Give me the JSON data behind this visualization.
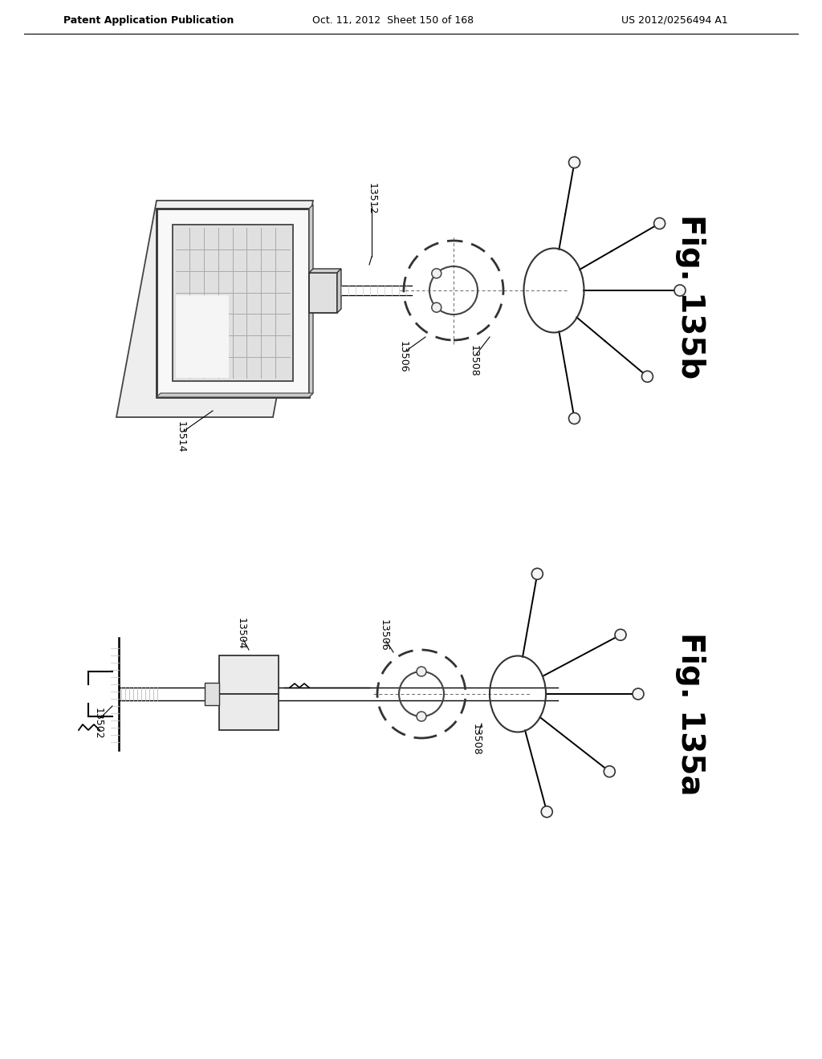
{
  "header_left": "Patent Application Publication",
  "header_center": "Oct. 11, 2012  Sheet 150 of 168",
  "header_right": "US 2012/0256494 A1",
  "fig_b_label": "Fig. 135b",
  "fig_a_label": "Fig. 135a",
  "label_13502": "13502",
  "label_13504": "13504",
  "label_13506_a": "13506",
  "label_13506_b": "13506",
  "label_13508_a": "13508",
  "label_13508_b": "13508",
  "label_13512": "13512",
  "label_13514": "13514",
  "bg_color": "#ffffff",
  "line_color": "#000000",
  "text_color": "#000000"
}
